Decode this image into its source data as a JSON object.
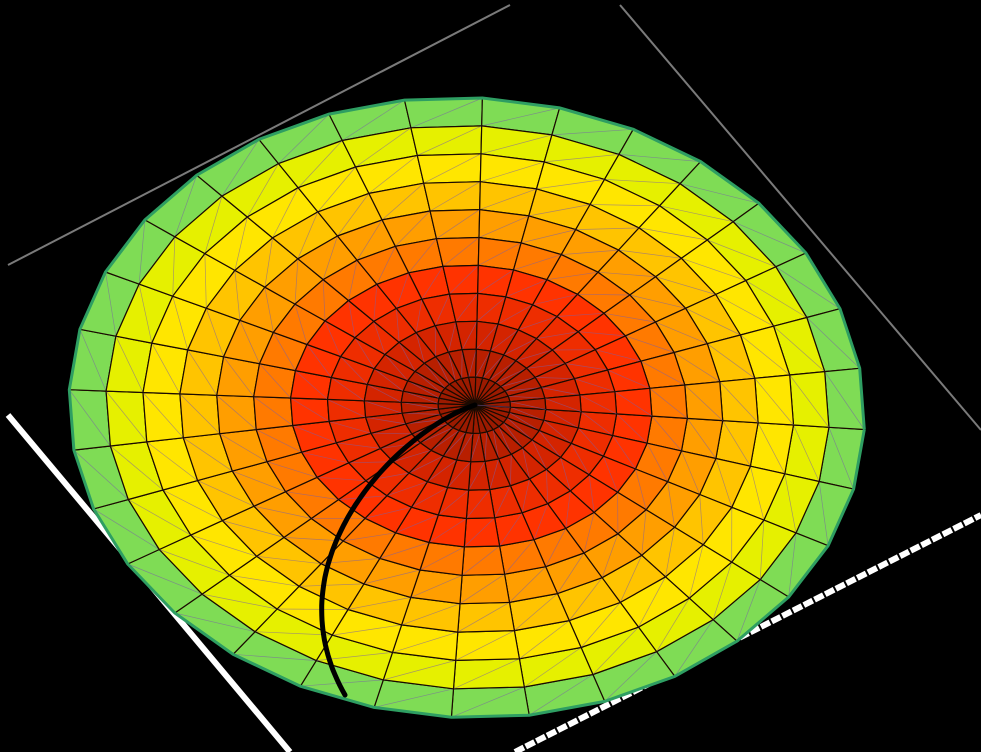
{
  "scene": {
    "background": "#000000",
    "frame_color_dim": "#7a7a7a",
    "frame_color_bright": "#ffffff",
    "mesh_line_color": "#1a0a00",
    "diag_line_color": "#7a5fa8",
    "rim_color": "#2e9e62",
    "curve_color": "#000000",
    "rings": 11,
    "segments": 32
  },
  "surface": {
    "type": "3d-bowl",
    "colormap": [
      "#9c1a00",
      "#b81f00",
      "#d42400",
      "#ee2d00",
      "#ff3300",
      "#ff5200",
      "#ff7a00",
      "#ff9e00",
      "#ffc400",
      "#ffe600",
      "#e6f000",
      "#7fdc55"
    ]
  }
}
